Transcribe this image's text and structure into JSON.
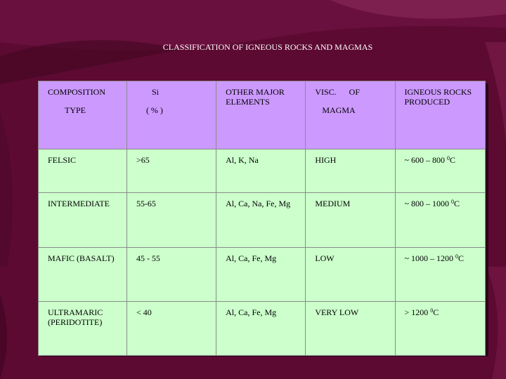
{
  "title": "CLASSIFICATION OF IGNEOUS ROCKS AND MAGMAS",
  "header": {
    "composition": "COMPOSITION",
    "type": "TYPE",
    "si": "Si",
    "si_unit": "( % )",
    "other_elements": "OTHER   MAJOR ELEMENTS",
    "visc": "VISC.      OF",
    "magma": "MAGMA",
    "rocks_produced": "IGNEOUS ROCKS PRODUCED"
  },
  "rows": [
    {
      "type": "FELSIC",
      "si": ">65",
      "elements": "Al, K, Na",
      "viscosity": "HIGH",
      "temp_prefix": "~ 600 – 800 ",
      "temp_sup": "0",
      "temp_unit": "C"
    },
    {
      "type": "INTERMEDIATE",
      "si": "55-65",
      "elements": "Al, Ca, Na, Fe, Mg",
      "viscosity": "MEDIUM",
      "temp_prefix": "~ 800 – 1000 ",
      "temp_sup": "0",
      "temp_unit": "C"
    },
    {
      "type": "MAFIC (BASALT)",
      "si": "45 - 55",
      "elements": "Al, Ca, Fe, Mg",
      "viscosity": "LOW",
      "temp_prefix": "~ 1000 – 1200 ",
      "temp_sup": "0",
      "temp_unit": "C"
    },
    {
      "type_line1": "ULTRAMARIC",
      "type_line2": "(PERIDOTITE)",
      "si": "< 40",
      "elements": "Al, Ca, Fe, Mg",
      "viscosity": "VERY LOW",
      "temp_prefix": "> 1200 ",
      "temp_sup": "0",
      "temp_unit": "C"
    }
  ]
}
